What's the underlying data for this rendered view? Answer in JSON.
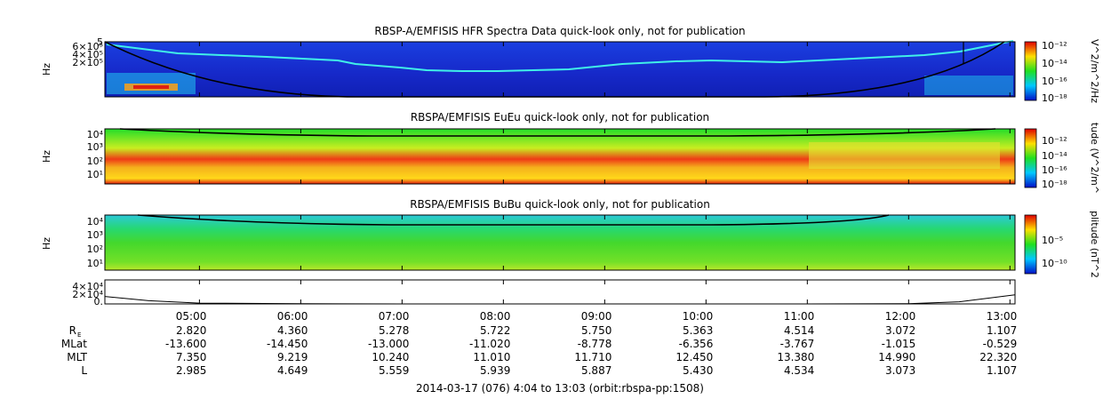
{
  "chart_data": [
    {
      "type": "heatmap",
      "title": "RBSP-A/EMFISIS  HFR Spectra Data quick-look only, not for publication",
      "ylabel": "Hz",
      "y_scale": "log",
      "y_ticks": [
        "6×10⁵",
        "4×10⁵",
        "2×10⁵"
      ],
      "top_tick": "5",
      "colorbar": {
        "label": "V^2/m^2/Hz",
        "scale": "log",
        "ticks": [
          "10⁻¹²",
          "10⁻¹⁴",
          "10⁻¹⁶",
          "10⁻¹⁸"
        ]
      },
      "background": "#1a2fd2"
    },
    {
      "type": "heatmap",
      "title": "RBSPA/EMFISIS  EuEu quick-look only, not for publication",
      "ylabel": "Hz",
      "y_scale": "log",
      "y_ticks": [
        "10⁴",
        "10³",
        "10²",
        "10¹"
      ],
      "colorbar": {
        "label": "tude (V^2/m^",
        "scale": "log",
        "ticks": [
          "10⁻¹²",
          "10⁻¹⁴",
          "10⁻¹⁶",
          "10⁻¹⁸"
        ]
      },
      "background": "#22dd2a"
    },
    {
      "type": "heatmap",
      "title": "RBSPA/EMFISIS  BuBu quick-look only, not for publication",
      "ylabel": "Hz",
      "y_scale": "log",
      "y_ticks": [
        "10⁴",
        "10³",
        "10²",
        "10¹"
      ],
      "colorbar": {
        "label": "plitude (nT^2",
        "scale": "log",
        "ticks": [
          "10⁻⁵",
          "10⁻¹⁰"
        ]
      },
      "background": "#2dd44a"
    },
    {
      "type": "line",
      "y_ticks": [
        "4×10⁴",
        "2×10⁴",
        "0."
      ],
      "y_range": [
        0,
        40000
      ],
      "x": [
        "04:04",
        "04:30",
        "05:00",
        "06:00",
        "07:00",
        "08:00",
        "09:00",
        "10:00",
        "11:00",
        "12:00",
        "12:30",
        "13:03"
      ],
      "y": [
        14000,
        6000,
        1500,
        300,
        0,
        0,
        0,
        0,
        0,
        300,
        4000,
        17000
      ]
    }
  ],
  "ephemeris": {
    "times": [
      "05:00",
      "06:00",
      "07:00",
      "08:00",
      "09:00",
      "10:00",
      "11:00",
      "12:00",
      "13:00"
    ],
    "rows": [
      {
        "label": "R",
        "label_sub": "E",
        "values": [
          "2.820",
          "4.360",
          "5.278",
          "5.722",
          "5.750",
          "5.363",
          "4.514",
          "3.072",
          "1.107"
        ]
      },
      {
        "label": "MLat",
        "label_sub": "",
        "values": [
          "-13.600",
          "-14.450",
          "-13.000",
          "-11.020",
          "-8.778",
          "-6.356",
          "-3.767",
          "-1.015",
          "-0.529"
        ]
      },
      {
        "label": "MLT",
        "label_sub": "",
        "values": [
          "7.350",
          "9.219",
          "10.240",
          "11.010",
          "11.710",
          "12.450",
          "13.380",
          "14.990",
          "22.320"
        ]
      },
      {
        "label": "L",
        "label_sub": "",
        "values": [
          "2.985",
          "4.649",
          "5.559",
          "5.939",
          "5.887",
          "5.430",
          "4.534",
          "3.073",
          "1.107"
        ]
      }
    ]
  },
  "footer": "2014-03-17 (076) 4:04 to 13:03 (orbit:rbspa-pp:1508)"
}
